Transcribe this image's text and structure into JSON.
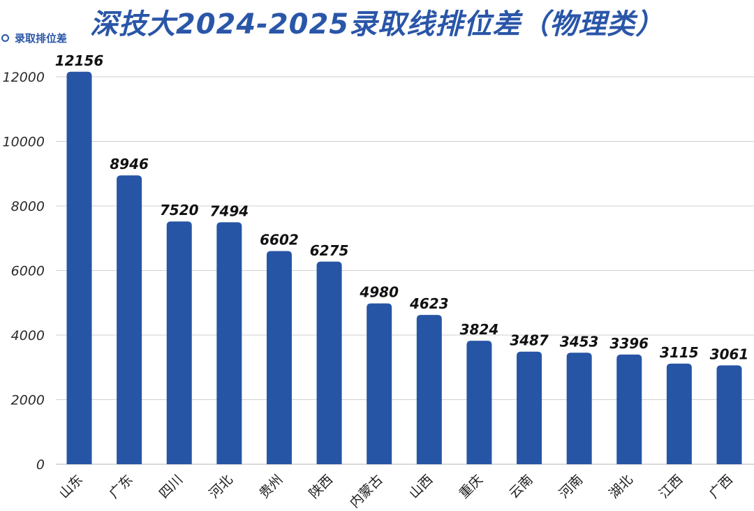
{
  "title": "深技大2024-2025录取线排位差（物理类）",
  "chart_data": {
    "type": "bar",
    "title": "深技大2024-2025录取线排位差（物理类）",
    "categories": [
      "山东",
      "广东",
      "四川",
      "河北",
      "贵州",
      "陕西",
      "内蒙古",
      "山西",
      "重庆",
      "云南",
      "河南",
      "湖北",
      "江西",
      "广西"
    ],
    "series": [
      {
        "name": "录取排位差",
        "values": [
          12156,
          8946,
          7520,
          7494,
          6602,
          6275,
          4980,
          4623,
          3824,
          3487,
          3453,
          3396,
          3115,
          3061
        ]
      }
    ],
    "yticks": [
      0,
      2000,
      4000,
      6000,
      8000,
      10000,
      12000
    ],
    "ylim": [
      0,
      12000
    ],
    "grid": true,
    "legend_position": "top-left",
    "bar_color": "#2755a5"
  }
}
